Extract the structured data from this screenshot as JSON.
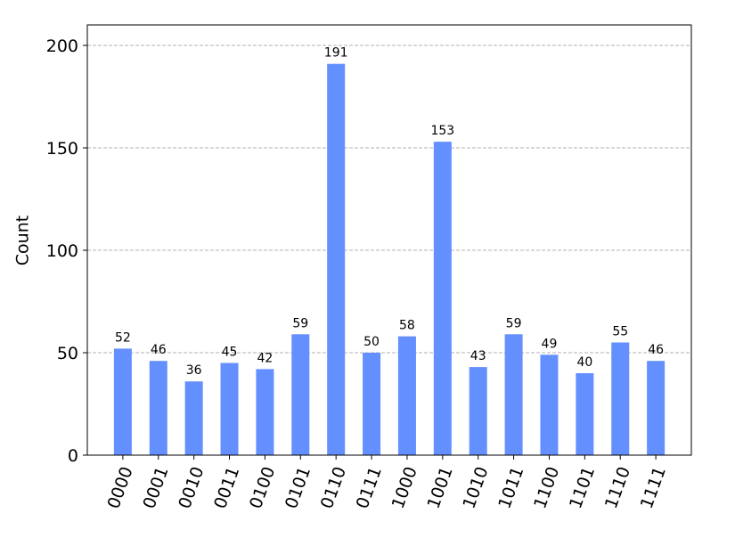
{
  "chart_data": {
    "type": "bar",
    "y_label": "Count",
    "categories": [
      "0000",
      "0001",
      "0010",
      "0011",
      "0100",
      "0101",
      "0110",
      "0111",
      "1000",
      "1001",
      "1010",
      "1011",
      "1100",
      "1101",
      "1110",
      "1111"
    ],
    "values": [
      52,
      46,
      36,
      45,
      42,
      59,
      191,
      50,
      58,
      153,
      43,
      59,
      49,
      40,
      55,
      46
    ],
    "color": "#648fff",
    "ylim": [
      0,
      210
    ],
    "yticks": [
      0,
      50,
      100,
      150,
      200
    ],
    "grid": true
  }
}
